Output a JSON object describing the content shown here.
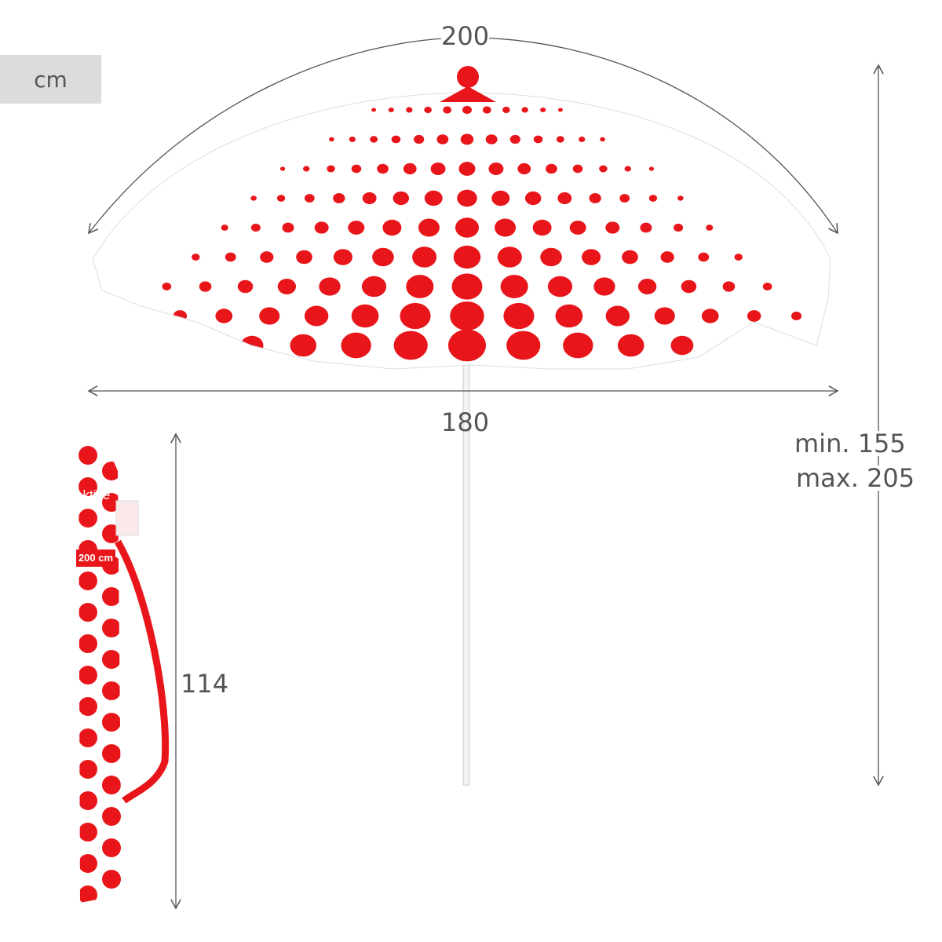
{
  "unit": "cm",
  "dimensions": {
    "canopy_arc": "200",
    "canopy_width": "180",
    "height_min": "min. 155",
    "height_max": "max. 205",
    "bag_length": "114"
  },
  "product": {
    "bag_logo": "aktive",
    "bag_size_text": "200 cm"
  },
  "colors": {
    "dots": "#e8161b",
    "fabric": "#ffffff",
    "lines": "#555555",
    "unit_box": "#dcdcdc"
  }
}
